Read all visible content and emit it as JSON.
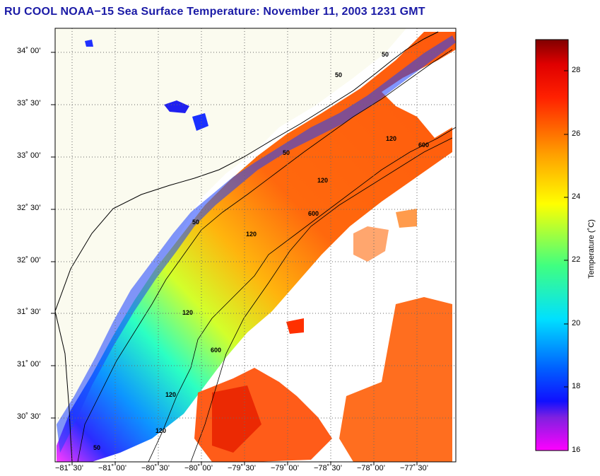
{
  "title": "RU COOL  NOAA−15  Sea Surface Temperature:  November 11, 2003 1231 GMT",
  "map": {
    "lat_labels": [
      "34˚ 00’",
      "33˚ 30’",
      "33˚ 00’",
      "32˚ 30’",
      "32˚ 00’",
      "31˚ 30’",
      "31˚ 00’",
      "30˚ 30’"
    ],
    "lon_labels": [
      "−81˚ 30’",
      "−81˚ 00’",
      "−80˚ 30’",
      "−80˚ 00’",
      "−79˚ 30’",
      "−79˚ 00’",
      "−78˚ 30’",
      "−78˚ 00’",
      "−77˚ 30’"
    ],
    "contour_labels": [
      "50",
      "50",
      "50",
      "50",
      "120",
      "120",
      "120",
      "120",
      "120",
      "120",
      "600",
      "600",
      "600",
      "50"
    ],
    "colors": {
      "land": "#fbfbef",
      "cloud": "#ffffff",
      "grid": "#6a6a6a"
    }
  },
  "colorbar": {
    "title": "Temperature (˚C)",
    "ticks": [
      "28",
      "26",
      "24",
      "22",
      "20",
      "18",
      "16"
    ],
    "min": 16,
    "max": 29,
    "colors": [
      "#ff00ff",
      "#6020c0",
      "#0000ff",
      "#0080ff",
      "#00e0ff",
      "#40ff80",
      "#ffff00",
      "#ffa000",
      "#ff4000",
      "#ff0000",
      "#800000"
    ]
  }
}
